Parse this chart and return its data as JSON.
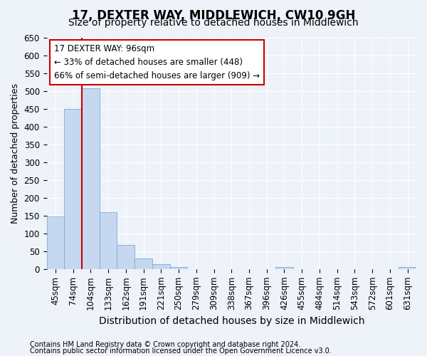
{
  "title": "17, DEXTER WAY, MIDDLEWICH, CW10 9GH",
  "subtitle": "Size of property relative to detached houses in Middlewich",
  "xlabel": "Distribution of detached houses by size in Middlewich",
  "ylabel": "Number of detached properties",
  "footer_line1": "Contains HM Land Registry data © Crown copyright and database right 2024.",
  "footer_line2": "Contains public sector information licensed under the Open Government Licence v3.0.",
  "categories": [
    "45sqm",
    "74sqm",
    "104sqm",
    "133sqm",
    "162sqm",
    "191sqm",
    "221sqm",
    "250sqm",
    "279sqm",
    "309sqm",
    "338sqm",
    "367sqm",
    "396sqm",
    "426sqm",
    "455sqm",
    "484sqm",
    "514sqm",
    "543sqm",
    "572sqm",
    "601sqm",
    "631sqm"
  ],
  "values": [
    148,
    450,
    507,
    160,
    68,
    30,
    13,
    5,
    0,
    0,
    0,
    0,
    0,
    5,
    0,
    0,
    0,
    0,
    0,
    0,
    5
  ],
  "bar_color": "#c5d8ef",
  "bar_edge_color": "#7badd4",
  "background_color": "#eef2f9",
  "grid_color": "#ffffff",
  "annotation_line1": "17 DEXTER WAY: 96sqm",
  "annotation_line2": "← 33% of detached houses are smaller (448)",
  "annotation_line3": "66% of semi-detached houses are larger (909) →",
  "annotation_box_color": "#ffffff",
  "annotation_box_edge": "#cc0000",
  "redline_color": "#cc0000",
  "redline_x": 1.5,
  "ylim": [
    0,
    650
  ],
  "yticks": [
    0,
    50,
    100,
    150,
    200,
    250,
    300,
    350,
    400,
    450,
    500,
    550,
    600,
    650
  ],
  "title_fontsize": 12,
  "subtitle_fontsize": 10,
  "ylabel_fontsize": 9,
  "xlabel_fontsize": 10,
  "tick_fontsize": 8.5,
  "footer_fontsize": 7
}
